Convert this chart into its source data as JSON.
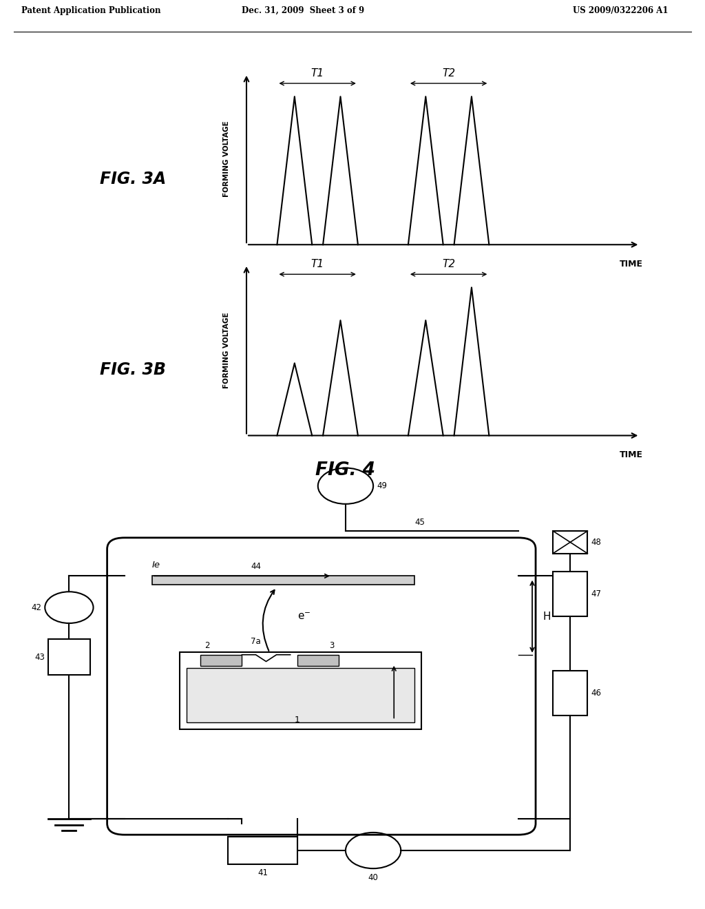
{
  "bg_color": "#ffffff",
  "text_color": "#000000",
  "header_left": "Patent Application Publication",
  "header_center": "Dec. 31, 2009  Sheet 3 of 9",
  "header_right": "US 2009/0322206 A1",
  "fig3a_label": "FIG. 3A",
  "fig3b_label": "FIG. 3B",
  "fig4_label": "FIG. 4",
  "ylabel_forming": "FORMING VOLTAGE",
  "xlabel_time": "TIME"
}
